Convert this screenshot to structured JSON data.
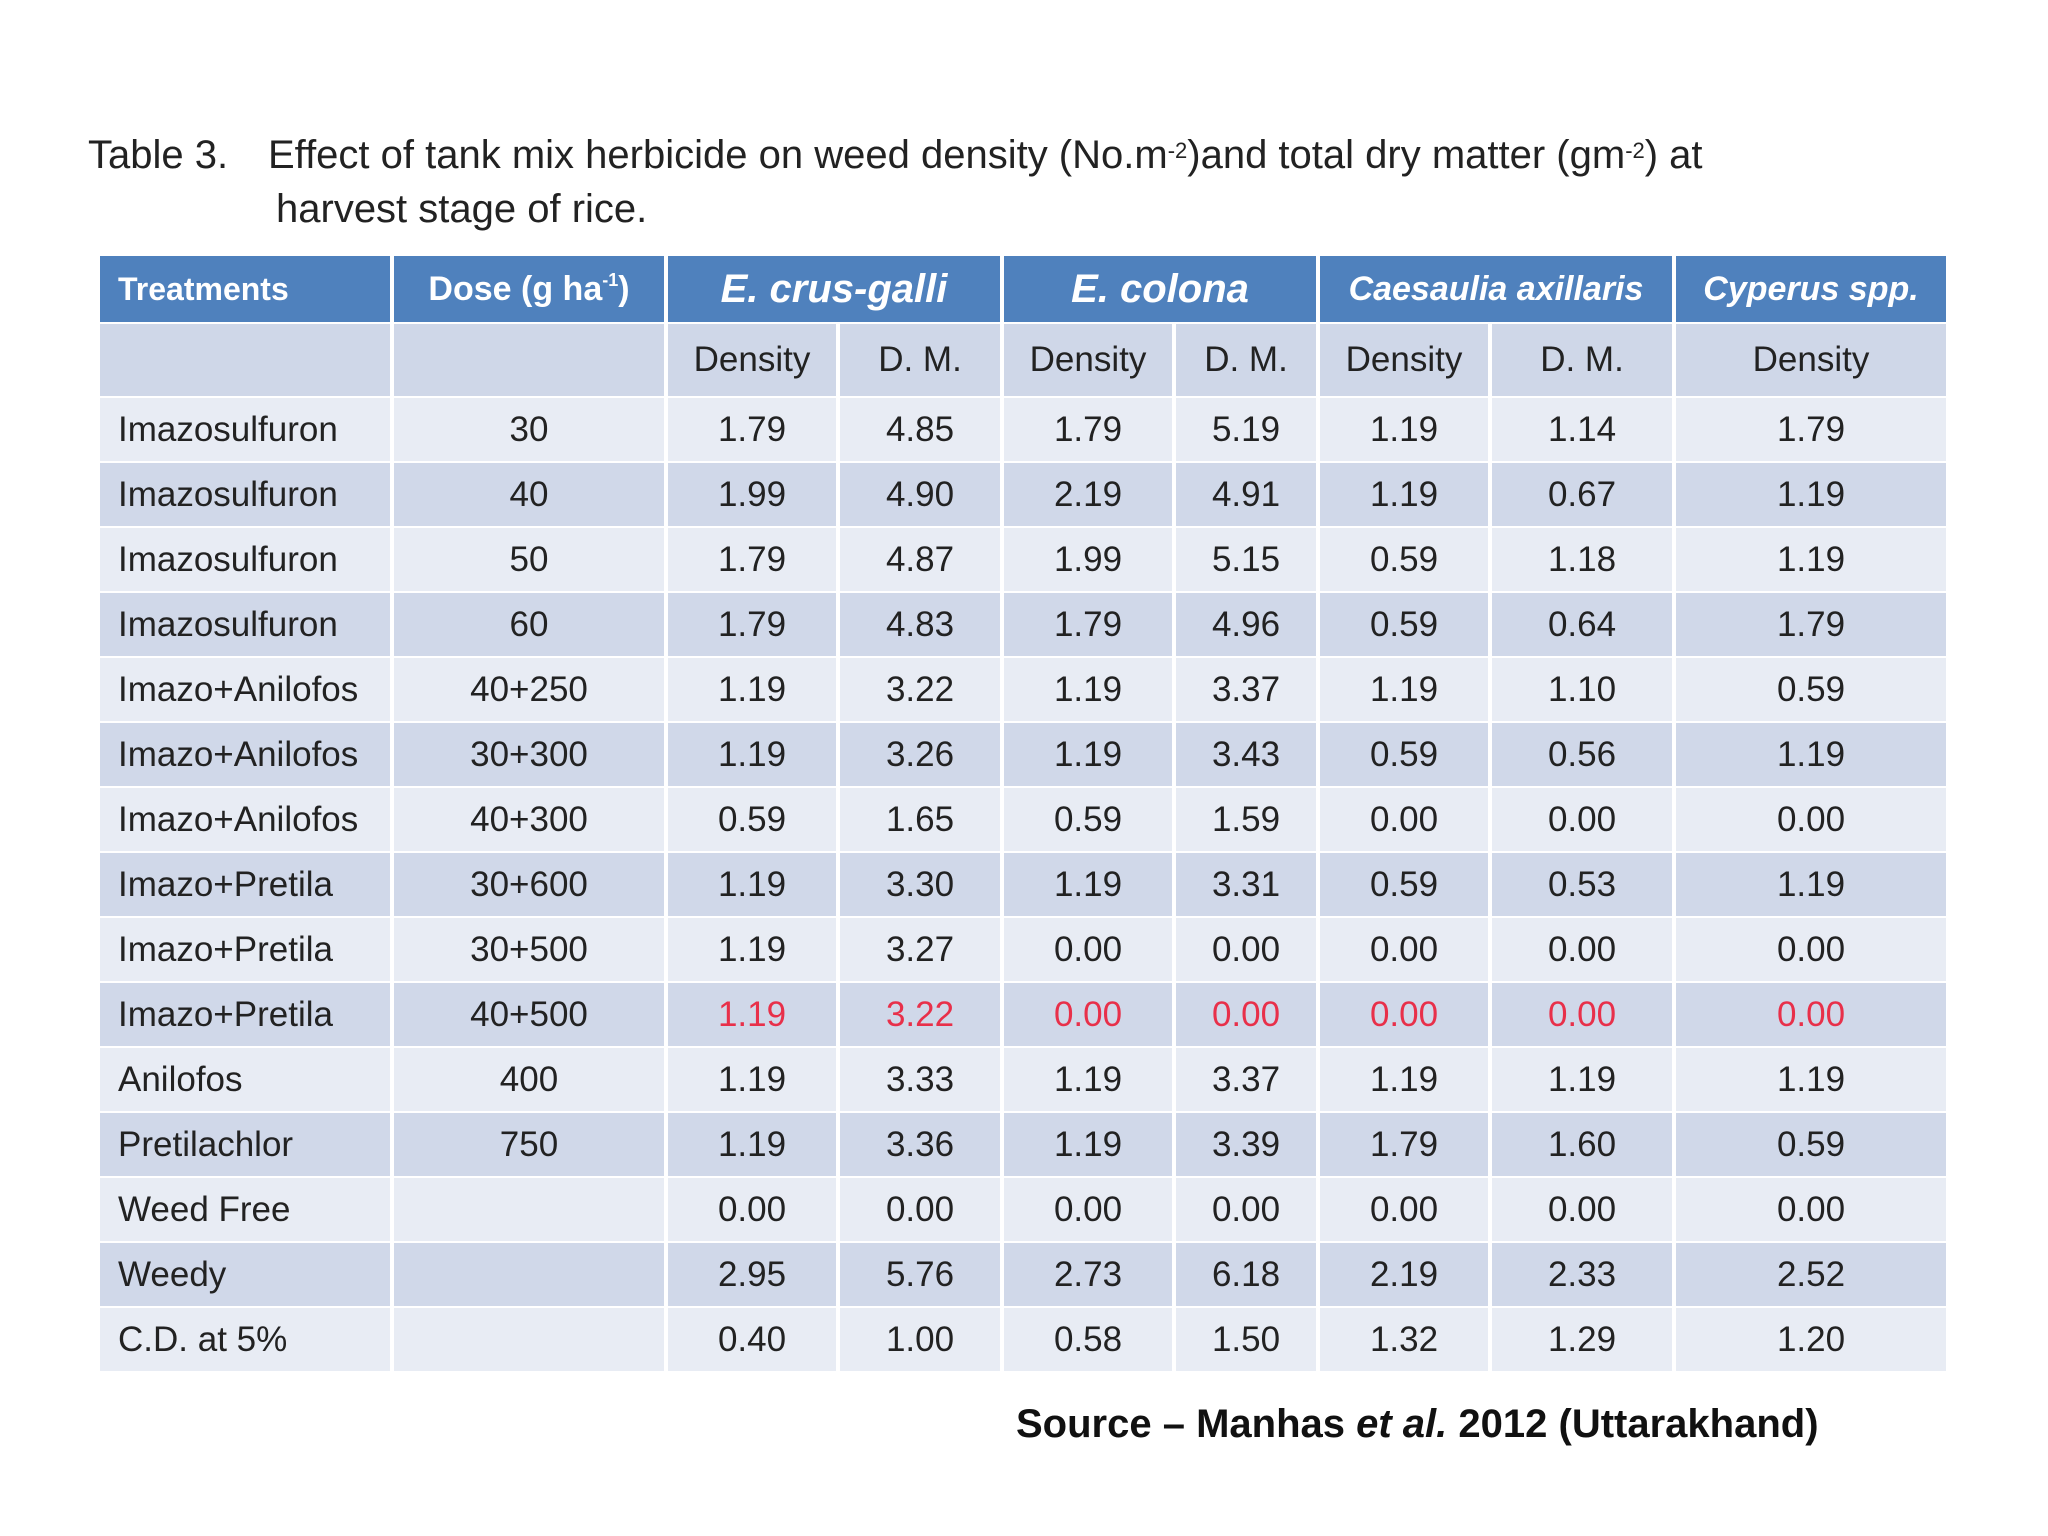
{
  "caption": {
    "label": "Table 3.",
    "line1_a": "Effect of tank mix herbicide on weed density (No.m",
    "sup1": "-2",
    "line1_b": ")and total dry matter (gm",
    "sup2": "-2",
    "line1_c": ") at",
    "line2": "harvest stage of rice."
  },
  "header": {
    "treatments": "Treatments",
    "dose": "Dose (g ha",
    "dose_sup": "-1",
    "dose_close": ")",
    "species": [
      "E. crus-galli",
      "E. colona",
      "Caesaulia axillaris",
      "Cyperus spp."
    ]
  },
  "subheader": [
    "",
    "",
    "Density",
    "D. M.",
    "Density",
    "D. M.",
    "Density",
    "D. M.",
    "Density"
  ],
  "rows": [
    {
      "treatment": "Imazosulfuron",
      "dose": "30",
      "v": [
        "1.79",
        "4.85",
        "1.79",
        "5.19",
        "1.19",
        "1.14",
        "1.79"
      ]
    },
    {
      "treatment": "Imazosulfuron",
      "dose": "40",
      "v": [
        "1.99",
        "4.90",
        "2.19",
        "4.91",
        "1.19",
        "0.67",
        "1.19"
      ]
    },
    {
      "treatment": "Imazosulfuron",
      "dose": "50",
      "v": [
        "1.79",
        "4.87",
        "1.99",
        "5.15",
        "0.59",
        "1.18",
        "1.19"
      ]
    },
    {
      "treatment": "Imazosulfuron",
      "dose": "60",
      "v": [
        "1.79",
        "4.83",
        "1.79",
        "4.96",
        "0.59",
        "0.64",
        "1.79"
      ]
    },
    {
      "treatment": "Imazo+Anilofos",
      "dose": "40+250",
      "v": [
        "1.19",
        "3.22",
        "1.19",
        "3.37",
        "1.19",
        "1.10",
        "0.59"
      ]
    },
    {
      "treatment": "Imazo+Anilofos",
      "dose": "30+300",
      "v": [
        "1.19",
        "3.26",
        "1.19",
        "3.43",
        "0.59",
        "0.56",
        "1.19"
      ]
    },
    {
      "treatment": "Imazo+Anilofos",
      "dose": "40+300",
      "v": [
        "0.59",
        "1.65",
        "0.59",
        "1.59",
        "0.00",
        "0.00",
        "0.00"
      ]
    },
    {
      "treatment": "Imazo+Pretila",
      "dose": "30+600",
      "v": [
        "1.19",
        "3.30",
        "1.19",
        "3.31",
        "0.59",
        "0.53",
        "1.19"
      ]
    },
    {
      "treatment": "Imazo+Pretila",
      "dose": "30+500",
      "v": [
        "1.19",
        "3.27",
        "0.00",
        "0.00",
        "0.00",
        "0.00",
        "0.00"
      ]
    },
    {
      "treatment": "Imazo+Pretila",
      "dose": "40+500",
      "v": [
        "1.19",
        "3.22",
        "0.00",
        "0.00",
        "0.00",
        "0.00",
        "0.00"
      ],
      "highlight": true
    },
    {
      "treatment": "Anilofos",
      "dose": "400",
      "v": [
        "1.19",
        "3.33",
        "1.19",
        "3.37",
        "1.19",
        "1.19",
        "1.19"
      ]
    },
    {
      "treatment": "Pretilachlor",
      "dose": "750",
      "v": [
        "1.19",
        "3.36",
        "1.19",
        "3.39",
        "1.79",
        "1.60",
        "0.59"
      ]
    },
    {
      "treatment": "Weed Free",
      "dose": "",
      "v": [
        "0.00",
        "0.00",
        "0.00",
        "0.00",
        "0.00",
        "0.00",
        "0.00"
      ]
    },
    {
      "treatment": "Weedy",
      "dose": "",
      "v": [
        "2.95",
        "5.76",
        "2.73",
        "6.18",
        "2.19",
        "2.33",
        "2.52"
      ]
    },
    {
      "treatment": "C.D. at 5%",
      "dose": "",
      "v": [
        "0.40",
        "1.00",
        "0.58",
        "1.50",
        "1.32",
        "1.29",
        "1.20"
      ]
    }
  ],
  "source": {
    "prefix": "Source – Manhas ",
    "etal": "et al.",
    "suffix": " 2012 (Uttarakhand)"
  },
  "colors": {
    "header_bg": "#4f81bd",
    "row_light": "#e8ecf4",
    "row_dark": "#d0d8e9",
    "highlight_text": "#e8304a"
  }
}
